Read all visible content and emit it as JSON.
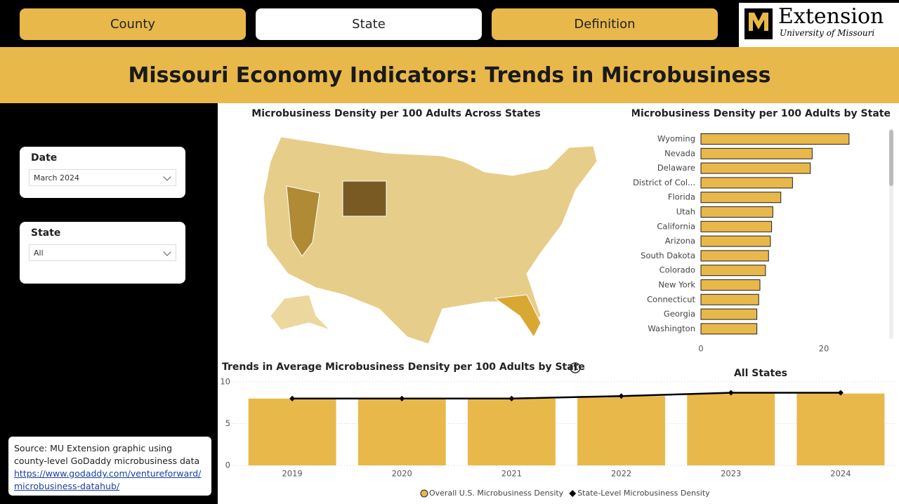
{
  "nav": {
    "tabs": [
      "County",
      "State",
      "Definition"
    ],
    "active": 1
  },
  "logo": {
    "name": "Extension",
    "subtitle": "University of Missouri"
  },
  "header": {
    "title": "Missouri Economy Indicators: Trends in Microbusiness"
  },
  "filters": [
    {
      "label": "Date",
      "value": "March 2024"
    },
    {
      "label": "State",
      "value": "All"
    }
  ],
  "source": {
    "text": "Source: MU Extension graphic using county-level GoDaddy microbusiness data",
    "link": "https://www.godaddy.com/ventureforward/microbusiness-datahub/"
  },
  "map": {
    "title": "Microbusiness Density per 100 Adults Across States"
  },
  "chart_data": [
    {
      "type": "bar",
      "orientation": "horizontal",
      "title": "Microbusiness Density per 100 Adults by State",
      "categories": [
        "Wyoming",
        "Nevada",
        "Delaware",
        "District of Col...",
        "Florida",
        "Utah",
        "California",
        "Arizona",
        "South Dakota",
        "Colorado",
        "New York",
        "Connecticut",
        "Georgia",
        "Washington"
      ],
      "values": [
        24.1,
        18.1,
        17.8,
        14.9,
        13.0,
        11.7,
        11.5,
        11.3,
        11.0,
        10.5,
        9.6,
        9.4,
        9.1,
        9.1
      ],
      "color": "#e8b84b",
      "xlim": [
        0,
        29
      ],
      "xticks": [
        0,
        20
      ]
    },
    {
      "type": "combo",
      "title": "Trends in Average Microbusiness Density per 100 Adults by State",
      "subtitle": "All States",
      "categories": [
        "2019",
        "2020",
        "2021",
        "2022",
        "2023",
        "2024"
      ],
      "series": [
        {
          "name": "Overall U.S. Microbusiness Density",
          "type": "bar",
          "color": "#e8b84b",
          "values": [
            8.0,
            8.0,
            8.0,
            8.3,
            8.6,
            8.6
          ]
        },
        {
          "name": "State-Level Microbusiness Density",
          "type": "line",
          "color": "#000000",
          "values": [
            8.0,
            8.0,
            8.0,
            8.3,
            8.7,
            8.7
          ]
        }
      ],
      "ylim": [
        0,
        10
      ],
      "yticks": [
        0,
        5,
        10
      ],
      "grid": true
    }
  ]
}
